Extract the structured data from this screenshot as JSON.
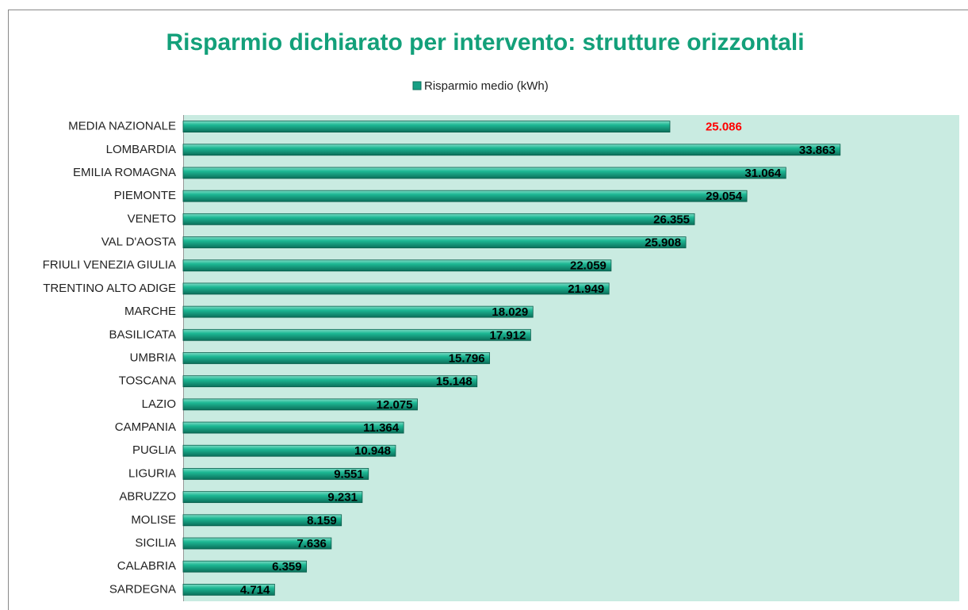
{
  "chart_data": {
    "type": "bar",
    "orientation": "horizontal",
    "title": "Risparmio dichiarato per intervento: strutture orizzontali",
    "categories": [
      "MEDIA NAZIONALE",
      "LOMBARDIA",
      "EMILIA ROMAGNA",
      "PIEMONTE",
      "VENETO",
      "VAL D'AOSTA",
      "FRIULI VENEZIA GIULIA",
      "TRENTINO ALTO ADIGE",
      "MARCHE",
      "BASILICATA",
      "UMBRIA",
      "TOSCANA",
      "LAZIO",
      "CAMPANIA",
      "PUGLIA",
      "LIGURIA",
      "ABRUZZO",
      "MOLISE",
      "SICILIA",
      "CALABRIA",
      "SARDEGNA"
    ],
    "series": [
      {
        "name": "Risparmio medio (kWh)",
        "color": "#17a085",
        "values": [
          25086,
          33863,
          31064,
          29054,
          26355,
          25908,
          22059,
          21949,
          18029,
          17912,
          15796,
          15148,
          12075,
          11364,
          10948,
          9551,
          9231,
          8159,
          7636,
          6359,
          4714
        ],
        "value_labels": [
          "25.086",
          "33.863",
          "31.064",
          "29.054",
          "26.355",
          "25.908",
          "22.059",
          "21.949",
          "18.029",
          "17.912",
          "15.796",
          "15.148",
          "12.075",
          "11.364",
          "10.948",
          "9.551",
          "9.231",
          "8.159",
          "7.636",
          "6.359",
          "4.714"
        ]
      }
    ],
    "xlim": [
      0,
      40000
    ],
    "highlight": {
      "index": 0,
      "color": "#ff0000"
    },
    "plot_background": "#c9ebe1",
    "title_color": "#13a07a"
  }
}
